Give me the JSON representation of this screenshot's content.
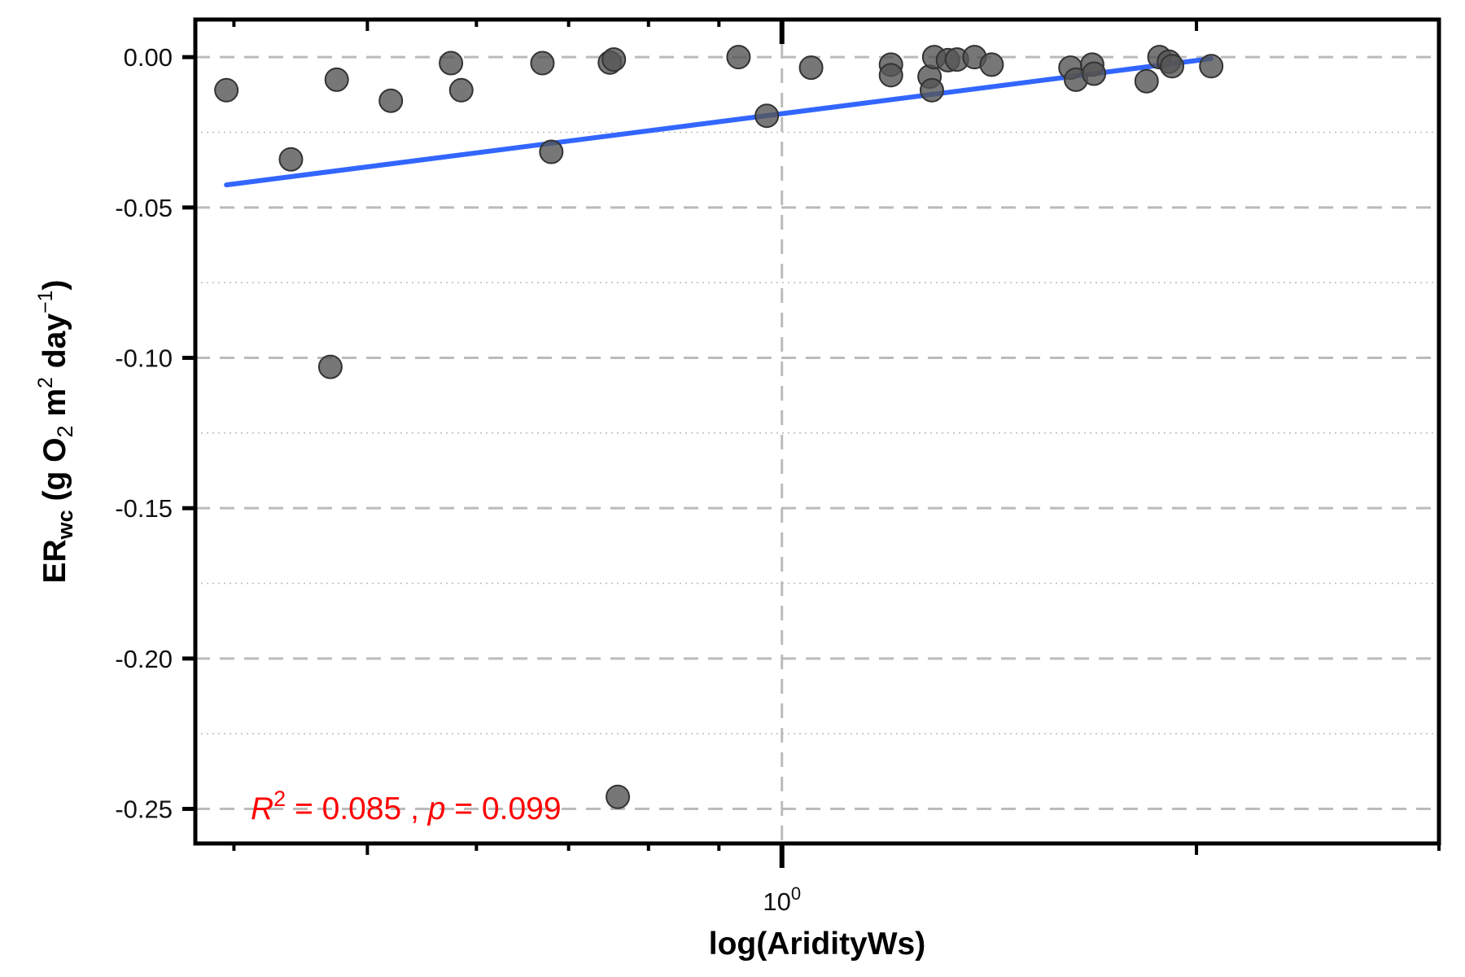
{
  "chart_data": {
    "type": "scatter",
    "title": "",
    "xlabel": "log(AridityWs)",
    "ylabel": {
      "main": "ER",
      "sub": "wc",
      "rest": " (g O",
      "o2_sub": "2",
      "m": " m",
      "m_sup": "2",
      "day": " day",
      "day_sup": "−1",
      "close": ")"
    },
    "x_scale": "log10",
    "xlim": [
      0.375,
      3.0
    ],
    "ylim": [
      -0.2615,
      0.0125
    ],
    "x_major_ticks": [
      {
        "value": 1,
        "base": "10",
        "exp": "0"
      }
    ],
    "x_minor_ticks": [
      0.4,
      0.5,
      0.6,
      0.7,
      0.8,
      0.9,
      2.0,
      3.0
    ],
    "y_ticks": [
      0.0,
      -0.05,
      -0.1,
      -0.15,
      -0.2,
      -0.25
    ],
    "y_tick_labels": [
      "0.00",
      "-0.05",
      "-0.10",
      "-0.15",
      "-0.20",
      "-0.25"
    ],
    "y_minor_grid": [
      -0.025,
      -0.075,
      -0.125,
      -0.175,
      -0.225
    ],
    "grid": true,
    "points": [
      {
        "x": 0.395,
        "y": -0.011
      },
      {
        "x": 0.44,
        "y": -0.034
      },
      {
        "x": 0.47,
        "y": -0.103
      },
      {
        "x": 0.475,
        "y": -0.0075
      },
      {
        "x": 0.52,
        "y": -0.0145
      },
      {
        "x": 0.575,
        "y": -0.002
      },
      {
        "x": 0.585,
        "y": -0.011
      },
      {
        "x": 0.67,
        "y": -0.002
      },
      {
        "x": 0.68,
        "y": -0.0315
      },
      {
        "x": 0.75,
        "y": -0.0018
      },
      {
        "x": 0.755,
        "y": -0.0008
      },
      {
        "x": 0.76,
        "y": -0.246
      },
      {
        "x": 0.93,
        "y": 0.0
      },
      {
        "x": 0.975,
        "y": -0.0195
      },
      {
        "x": 1.05,
        "y": -0.0035
      },
      {
        "x": 1.2,
        "y": -0.0025
      },
      {
        "x": 1.2,
        "y": -0.006
      },
      {
        "x": 1.28,
        "y": -0.0065
      },
      {
        "x": 1.285,
        "y": -0.011
      },
      {
        "x": 1.29,
        "y": -0.0
      },
      {
        "x": 1.32,
        "y": -0.001
      },
      {
        "x": 1.34,
        "y": -0.0008
      },
      {
        "x": 1.38,
        "y": 0.0
      },
      {
        "x": 1.42,
        "y": -0.0025
      },
      {
        "x": 1.62,
        "y": -0.0035
      },
      {
        "x": 1.635,
        "y": -0.0075
      },
      {
        "x": 1.68,
        "y": -0.0025
      },
      {
        "x": 1.685,
        "y": -0.0055
      },
      {
        "x": 1.84,
        "y": -0.008
      },
      {
        "x": 1.88,
        "y": 0.0
      },
      {
        "x": 1.91,
        "y": -0.0015
      },
      {
        "x": 1.92,
        "y": -0.003
      },
      {
        "x": 2.05,
        "y": -0.003
      }
    ],
    "fit_line": {
      "x": [
        0.395,
        2.05
      ],
      "y": [
        -0.0425,
        -0.0005
      ]
    },
    "colors": {
      "points": "#555555",
      "point_edge": "#333333",
      "fit": "#3366ff",
      "stat_text": "#ff0000",
      "grid": "#bbbbbb",
      "axis": "#000000"
    },
    "annotation": {
      "r_letter": "R",
      "r_sup": "2",
      "r_value": " = 0.085 , ",
      "p_letter": "p",
      "p_value": " = 0.099"
    }
  }
}
